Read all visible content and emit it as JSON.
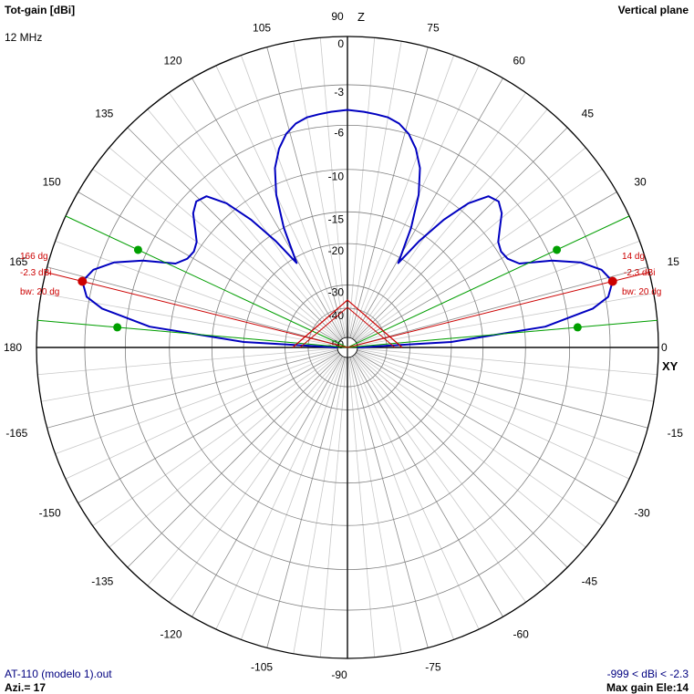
{
  "header": {
    "title": "Tot-gain [dBi]",
    "frequency": "12 MHz",
    "plane": "Vertical plane"
  },
  "footer": {
    "file": "AT-110 (modelo 1).out",
    "azimuth": "Azi.= 17",
    "range": "-999 < dBi < -2.3",
    "max_gain": "Max gain Ele:14"
  },
  "axis_labels": {
    "top": "Z",
    "right": "XY"
  },
  "colors": {
    "pattern": "#0000c0",
    "beamwidth": "#00a000",
    "max_lobe": "#cc0000",
    "annotation": "#cc0000",
    "grid": "#808080",
    "axis": "#000000"
  },
  "chart_data": {
    "type": "polar",
    "unit": "dBi",
    "r_labels": [
      "0",
      "-3",
      "-6",
      "-10",
      "-15",
      "-20",
      "-30",
      "-40",
      "-50"
    ],
    "r_label_values": [
      0,
      -3,
      -6,
      -10,
      -15,
      -20,
      -30,
      -40,
      -50
    ],
    "angle_labels": [
      0,
      15,
      30,
      45,
      60,
      75,
      90,
      105,
      120,
      135,
      150,
      165,
      180,
      -165,
      -150,
      -135,
      -120,
      -105,
      -90,
      -75,
      -60,
      -45,
      -30,
      -15
    ],
    "series": [
      {
        "type": "line",
        "elevation_deg": [
          0,
          3,
          6,
          9,
          11,
          14,
          17,
          20,
          23,
          26,
          29,
          32,
          35,
          38,
          41,
          44,
          47,
          50,
          53,
          56,
          59,
          62,
          65,
          68,
          71,
          74,
          77,
          80,
          83,
          86,
          90
        ],
        "gain_dbi": [
          -50,
          -20,
          -8,
          -4,
          -2.8,
          -2.3,
          -2.8,
          -4,
          -6,
          -8.7,
          -9.5,
          -9.7,
          -9.4,
          -8.5,
          -7.5,
          -7,
          -7.3,
          -9,
          -12,
          -16,
          -21,
          -15,
          -11,
          -8.5,
          -7,
          -6,
          -5.4,
          -5.1,
          -5,
          -4.9,
          -4.8
        ]
      }
    ],
    "max_gain_marker": {
      "elevation_deg": 14,
      "gain_dbi": -2.3,
      "angle_label": "14 dg",
      "gain_label": "-2.3 dBi",
      "bw_label": "bw: 20 dg"
    },
    "max_gain_marker_mirror": {
      "angle_label": "166 dg",
      "gain_label": "-2.3 dBi",
      "bw_label": "bw: 20 dg"
    },
    "beamwidth": {
      "elevation_deg": [
        5,
        25
      ],
      "gain_dbi": -5.3
    }
  }
}
